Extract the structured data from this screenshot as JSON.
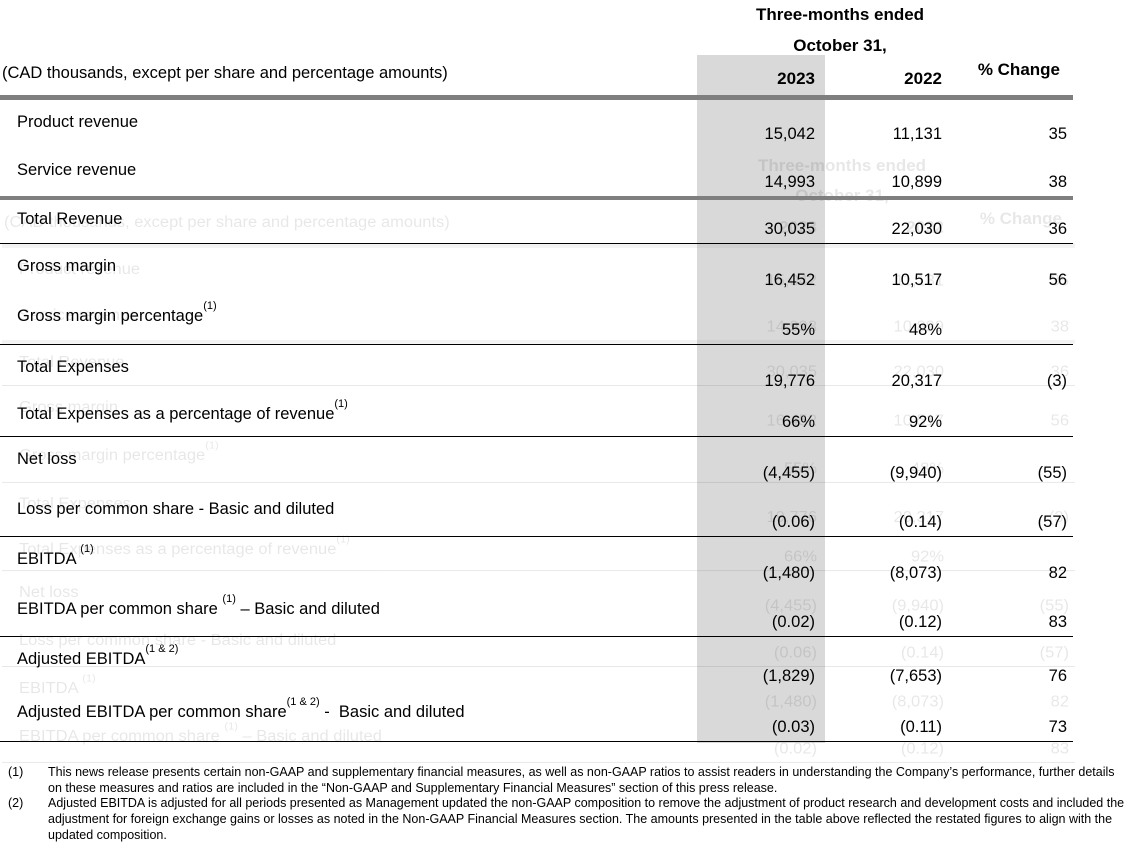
{
  "header": {
    "period_line1": "Three-months ended",
    "period_line2": "October 31,",
    "unit_note": "(CAD thousands, except per share and percentage amounts)",
    "col_2023": "2023",
    "col_2022": "2022",
    "col_change": "% Change"
  },
  "table": {
    "rows": [
      {
        "label": "Product revenue",
        "sup": "",
        "suffix": "",
        "v2023": "15,042",
        "v2022": "11,131",
        "change": "35"
      },
      {
        "label": "Service revenue",
        "sup": "",
        "suffix": "",
        "v2023": "14,993",
        "v2022": "10,899",
        "change": "38"
      },
      {
        "label": "Total Revenue",
        "sup": "",
        "suffix": "",
        "v2023": "30,035",
        "v2022": "22,030",
        "change": "36"
      },
      {
        "label": "Gross margin",
        "sup": "",
        "suffix": "",
        "v2023": "16,452",
        "v2022": "10,517",
        "change": "56"
      },
      {
        "label": "Gross margin percentage",
        "sup": "(1)",
        "suffix": "",
        "v2023": "55%",
        "v2022": "48%",
        "change": ""
      },
      {
        "label": "Total Expenses",
        "sup": "",
        "suffix": "",
        "v2023": "19,776",
        "v2022": "20,317",
        "change": "(3)"
      },
      {
        "label": "Total Expenses as a percentage of revenue",
        "sup": "(1)",
        "suffix": "",
        "v2023": "66%",
        "v2022": "92%",
        "change": ""
      },
      {
        "label": "Net loss",
        "sup": "",
        "suffix": "",
        "v2023": "(4,455)",
        "v2022": "(9,940)",
        "change": "(55)"
      },
      {
        "label": "Loss per common share - Basic and diluted",
        "sup": "",
        "suffix": "",
        "v2023": "(0.06)",
        "v2022": "(0.14)",
        "change": "(57)"
      },
      {
        "label": "EBITDA ",
        "sup": "(1)",
        "suffix": "",
        "v2023": "(1,480)",
        "v2022": "(8,073)",
        "change": "82"
      },
      {
        "label": "EBITDA per common share ",
        "sup": "(1)",
        "suffix": " – Basic and diluted",
        "v2023": "(0.02)",
        "v2022": "(0.12)",
        "change": "83"
      },
      {
        "label": "Adjusted EBITDA",
        "sup": "(1 & 2)",
        "suffix": "",
        "v2023": "(1,829)",
        "v2022": "(7,653)",
        "change": "76"
      },
      {
        "label": "Adjusted EBITDA per common share",
        "sup": "(1 & 2)",
        "suffix": " -  Basic and diluted",
        "v2023": "(0.03)",
        "v2022": "(0.11)",
        "change": "73"
      }
    ]
  },
  "footnotes": [
    {
      "marker": "(1)",
      "text": "This news release presents certain non-GAAP and supplementary financial measures, as well as non-GAAP ratios to assist readers in understanding the Company’s performance, further details on these measures and ratios are included in the “Non-GAAP and Supplementary Financial Measures” section of this press release."
    },
    {
      "marker": "(2)",
      "text": "Adjusted EBITDA is adjusted for all periods presented as Management updated the non-GAAP composition to remove the adjustment of product research and development costs and included the adjustment for foreign exchange gains or losses as noted in the Non-GAAP Financial Measures section. The amounts presented in the table above reflected the restated figures to align with the updated composition."
    }
  ],
  "colors": {
    "column_highlight": "#d9d9d9",
    "thick_rule": "#7f7f7f",
    "thin_rule": "#000000"
  }
}
